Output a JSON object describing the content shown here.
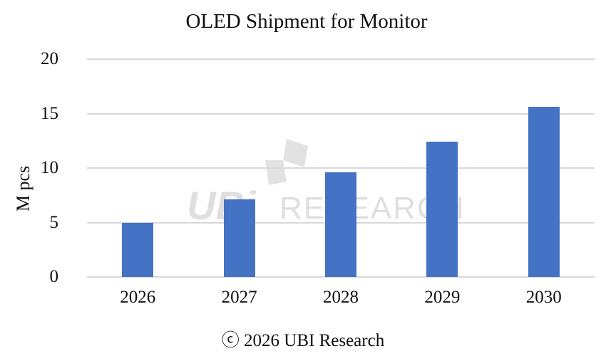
{
  "chart_data": {
    "type": "bar",
    "title": "OLED Shipment for Monitor",
    "xlabel": "",
    "ylabel": "M pcs",
    "categories": [
      "2026",
      "2027",
      "2028",
      "2029",
      "2030"
    ],
    "values": [
      5.0,
      7.1,
      9.6,
      12.4,
      15.6
    ],
    "ylim": [
      0,
      20
    ],
    "yticks": [
      "0",
      "5",
      "10",
      "15",
      "20"
    ],
    "grid": true,
    "legend": "none",
    "bar_color": "#4472c4"
  },
  "footer": "ⓒ 2026 UBI Research",
  "watermark": {
    "logo": "UBi",
    "text": "RESEARCH"
  }
}
